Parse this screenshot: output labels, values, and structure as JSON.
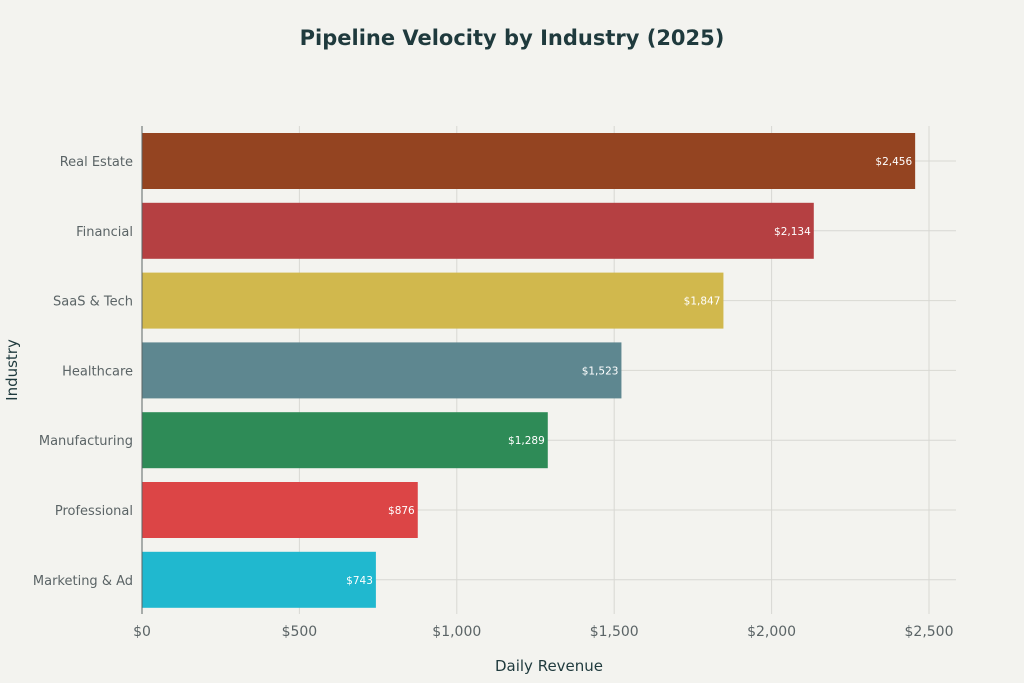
{
  "chart_data": {
    "type": "bar",
    "orientation": "horizontal",
    "title": "Pipeline Velocity by Industry (2025)",
    "xlabel": "Daily Revenue",
    "ylabel": "Industry",
    "categories": [
      "Real Estate",
      "Financial",
      "SaaS & Tech",
      "Healthcare",
      "Manufacturing",
      "Professional",
      "Marketing & Ad"
    ],
    "values": [
      2456,
      2134,
      1847,
      1523,
      1289,
      876,
      743
    ],
    "value_labels": [
      "$2,456",
      "$2,134",
      "$1,847",
      "$1,523",
      "$1,289",
      "$876",
      "$743"
    ],
    "colors": [
      "#944421",
      "#b54042",
      "#d1b84d",
      "#5e8790",
      "#2e8b57",
      "#dc4546",
      "#20b8cf"
    ],
    "xlim": [
      0,
      2600
    ],
    "xticks": [
      0,
      500,
      1000,
      1500,
      2000,
      2500
    ],
    "xtick_labels": [
      "$0",
      "$500",
      "$1,000",
      "$1,500",
      "$2,000",
      "$2,500"
    ],
    "grid": true,
    "legend": "none"
  }
}
